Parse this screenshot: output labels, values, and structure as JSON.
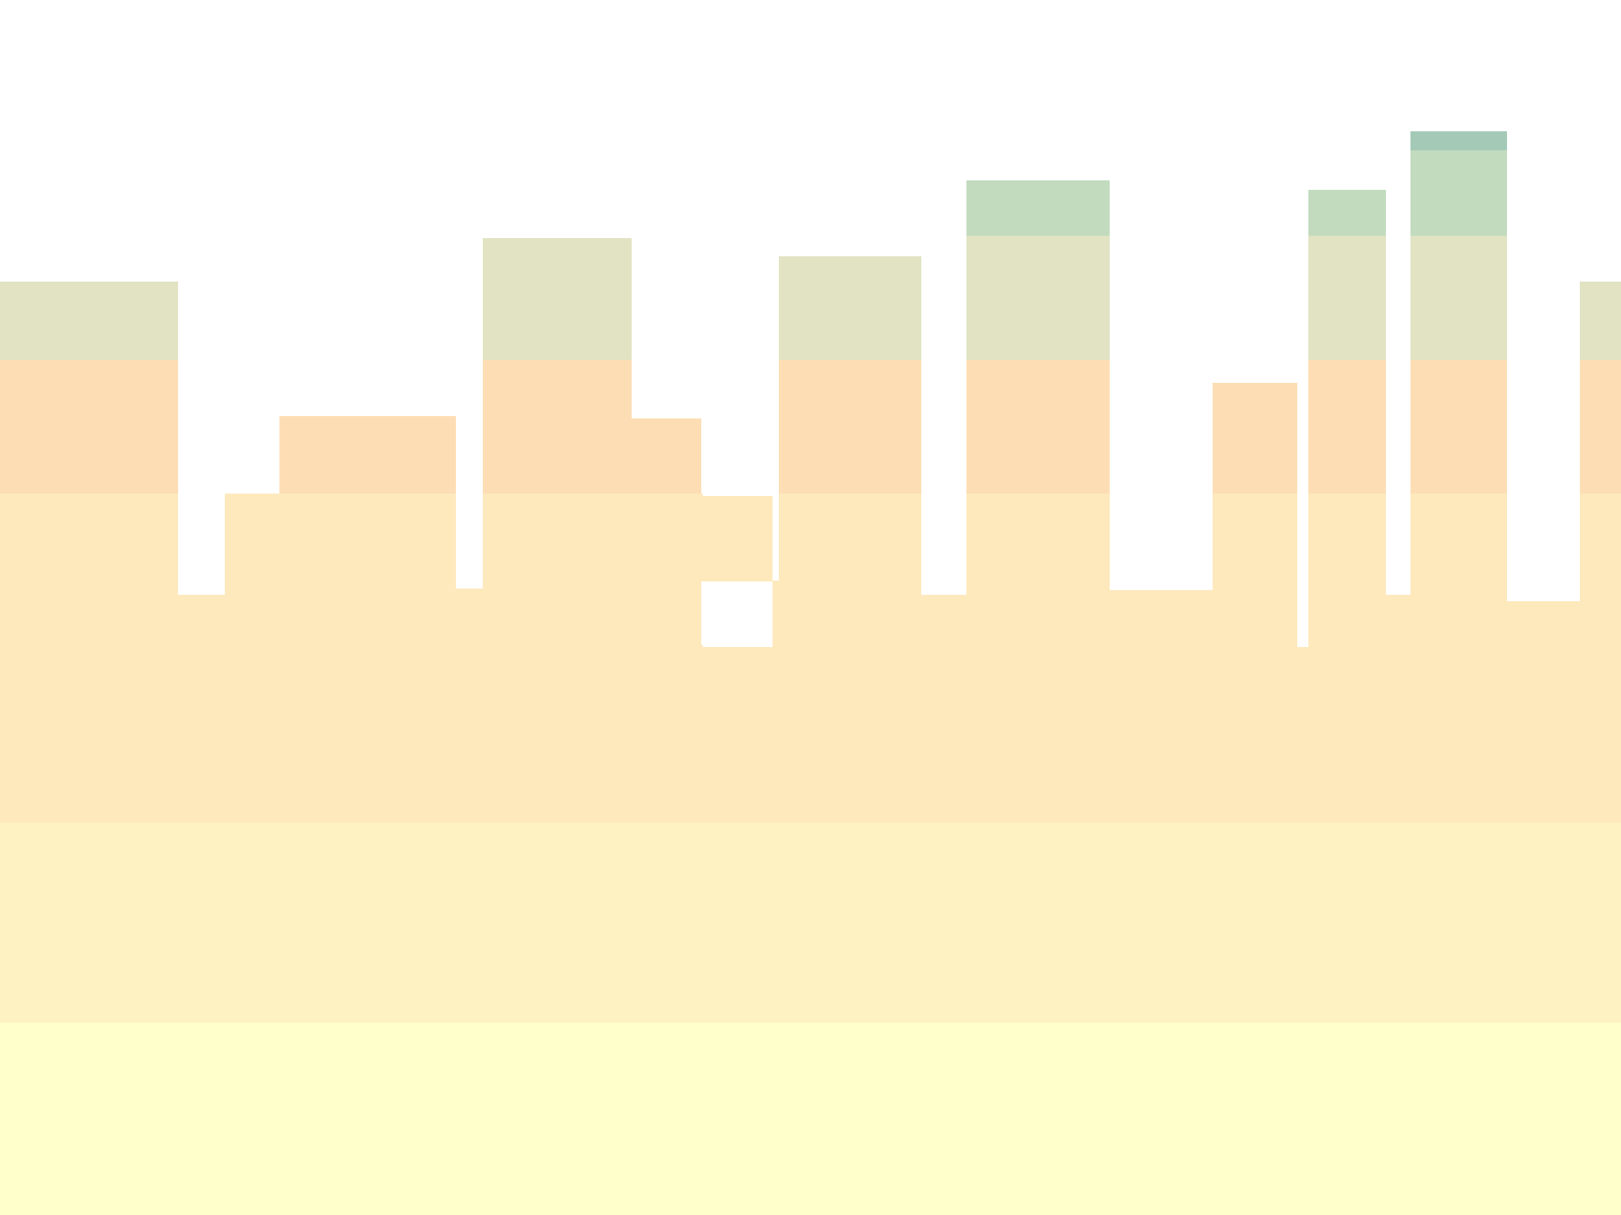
{
  "palette": {
    "background": "#ffffff",
    "band_lowest": "#ffffcc",
    "band_low": "#fff2c2",
    "band_mid": "#fee9bd",
    "band_orange": "#fddeb4",
    "band_olive": "#e1e3c3",
    "band_green": "#c2dbbf",
    "band_teal": "#a4cab7"
  }
}
